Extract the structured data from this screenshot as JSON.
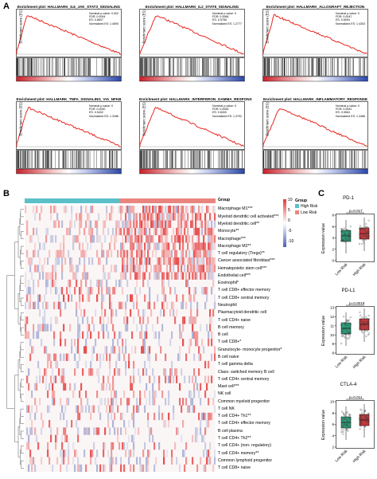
{
  "panels": {
    "a": "A",
    "b": "B",
    "c": "C"
  },
  "gsea": [
    {
      "title": "Enrichment plot: HALLMARK_IL6_JAK_STAT3_SIGNALING",
      "stats": [
        "Nominal p-value: 0.002",
        "FDR: 0.0094",
        "ES: 0.8607",
        "Normalized ES: 1.4690"
      ],
      "ylabel": "Enrichment score (ES)"
    },
    {
      "title": "Enrichment plot: HALLMARK_IL2_STAT5_SIGNALING",
      "stats": [
        "Nominal p-value: 0",
        "FDR: 0.0068",
        "ES: 0.5756",
        "Normalized ES: 1.2777"
      ],
      "ylabel": "Enrichment score (ES)"
    },
    {
      "title": "Enrichment plot: HALLMARK_ALLOGRAFT_REJECTION",
      "stats": [
        "Nominal p-value: 0",
        "FDR: 0.0047",
        "ES: 0.6094",
        "Normalized ES: 1.4303"
      ],
      "ylabel": "Enrichment score (ES)"
    },
    {
      "title": "Enrichment plot: HALLMARK_TNFA_SIGNALING_VIA_NFKB",
      "stats": [
        "Nominal p-value: 0",
        "FDR: 0.0040",
        "ES: 0.5432",
        "Normalized ES: 1.3286"
      ],
      "ylabel": "Enrichment score (ES)"
    },
    {
      "title": "Enrichment plot: HALLMARK_INTERFERON_GAMMA_RESPONS",
      "stats": [
        "Nominal p-value: 0",
        "FDR: 0.0055",
        "ES: 0.6000",
        "Normalized ES: 1.3792"
      ],
      "ylabel": "Enrichment score (ES)"
    },
    {
      "title": "Enrichment plot: HALLMARK_INFLAMMATORY_RESPONSE",
      "stats": [
        "Nominal p-value: 0",
        "FDR: 0.0051",
        "ES: 0.5564",
        "Normalized ES: 1.3486"
      ],
      "ylabel": "Enrichment score (ES)"
    }
  ],
  "heatmap": {
    "group_label": "Group",
    "legend_title": "Group",
    "legend_items": [
      {
        "label": "High Risk",
        "color": "#5bc0c8"
      },
      {
        "label": "Low Risk",
        "color": "#e9857f"
      }
    ],
    "scale_ticks": [
      "10",
      "5",
      "0",
      "-5",
      "-10"
    ],
    "rows": [
      "Macrophage M1***",
      "Myeloid dendritic cell activated***",
      "Myeloid dendritic cell**",
      "Monocyte**",
      "Macrophage***",
      "Macrophage M2**",
      "T cell regulatory (Tregs)**",
      "Cancer associated fibroblast***",
      "Hematopoietic stem cell***",
      "Endothelial cell***",
      "Eosinophil*",
      "T cell CD8+ effector memory",
      "T cell CD8+ central memory",
      "Neutrophil",
      "Plasmacytoid dendritic cell",
      "T cell CD4+ naive",
      "B cell memory",
      "B cell",
      "T cell CD8+*",
      "Granulocyte- monocyte progenitor*",
      "B cell naive",
      "T cell gamma delta",
      "Class- switched memory B cell",
      "T cell CD4+ central memory",
      "Mast cell***",
      "NK cell",
      "Common myeloid progenitor",
      "T cell NK",
      "T cell CD4+ Th1**",
      "T cell CD4+ effector memory",
      "B cell plasma",
      "T cell CD4+ Th2**",
      "T cell CD4+ (non- regulatory)",
      "T cell CD4+ memory**",
      "Common lymphoid progenitor",
      "T cell CD8+ naive"
    ]
  },
  "boxplots": [
    {
      "title": "PD-1",
      "pvalue": "p=0.017",
      "ylabel": "Expression value",
      "yticks": [
        "8",
        "6",
        "4",
        "2",
        "0"
      ],
      "categories": [
        "Low Risk",
        "High Risk"
      ]
    },
    {
      "title": "PD-L1",
      "pvalue": "p=0.0019",
      "ylabel": "Expression value",
      "yticks": [
        "13",
        "12",
        "11",
        "10",
        "9",
        "8"
      ],
      "categories": [
        "Low Risk",
        "High Risk"
      ]
    },
    {
      "title": "CTLA-4",
      "pvalue": "p=0.011",
      "ylabel": "Expression value",
      "yticks": [
        "10",
        "8",
        "6",
        "4",
        "2"
      ],
      "categories": [
        "Low Risk",
        "High Risk"
      ]
    }
  ],
  "colors": {
    "es_curve": "#e8261f",
    "high_risk": "#5bc0c8",
    "low_risk": "#e9857f",
    "box_low": "#2a9e7a",
    "box_high": "#c9373a",
    "heat_pos": "#e53b3b",
    "heat_neg": "#4d62b0"
  }
}
